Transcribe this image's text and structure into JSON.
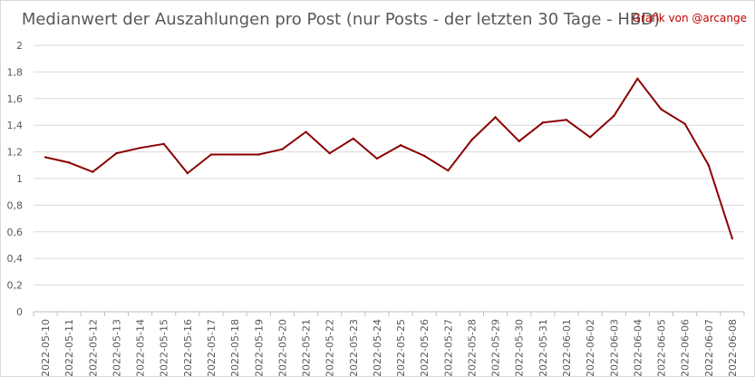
{
  "title": "Medianwert der Auszahlungen pro Post (nur Posts - der letzten 30 Tage - HBD)",
  "credit": "Grafik von @arcange",
  "chart_data": {
    "type": "line",
    "title": "Medianwert der Auszahlungen pro Post (nur Posts - der letzten 30 Tage - HBD)",
    "xlabel": "",
    "ylabel": "",
    "ylim": [
      0,
      2
    ],
    "yticks": [
      "0",
      "0,2",
      "0,4",
      "0,6",
      "0,8",
      "1",
      "1,2",
      "1,4",
      "1,6",
      "1,8",
      "2"
    ],
    "yticks_values": [
      0,
      0.2,
      0.4,
      0.6,
      0.8,
      1,
      1.2,
      1.4,
      1.6,
      1.8,
      2
    ],
    "grid": true,
    "line_color": "#8b0000",
    "categories": [
      "2022-05-10",
      "2022-05-11",
      "2022-05-12",
      "2022-05-13",
      "2022-05-14",
      "2022-05-15",
      "2022-05-16",
      "2022-05-17",
      "2022-05-18",
      "2022-05-19",
      "2022-05-20",
      "2022-05-21",
      "2022-05-22",
      "2022-05-23",
      "2022-05-24",
      "2022-05-25",
      "2022-05-26",
      "2022-05-27",
      "2022-05-28",
      "2022-05-29",
      "2022-05-30",
      "2022-05-31",
      "2022-06-01",
      "2022-06-02",
      "2022-06-03",
      "2022-06-04",
      "2022-06-05",
      "2022-06-06",
      "2022-06-07",
      "2022-06-08"
    ],
    "values": [
      1.16,
      1.12,
      1.05,
      1.19,
      1.23,
      1.26,
      1.04,
      1.18,
      1.18,
      1.18,
      1.22,
      1.35,
      1.19,
      1.3,
      1.15,
      1.25,
      1.17,
      1.06,
      1.29,
      1.46,
      1.28,
      1.42,
      1.44,
      1.31,
      1.47,
      1.75,
      1.52,
      1.41,
      1.1,
      0.55
    ]
  }
}
